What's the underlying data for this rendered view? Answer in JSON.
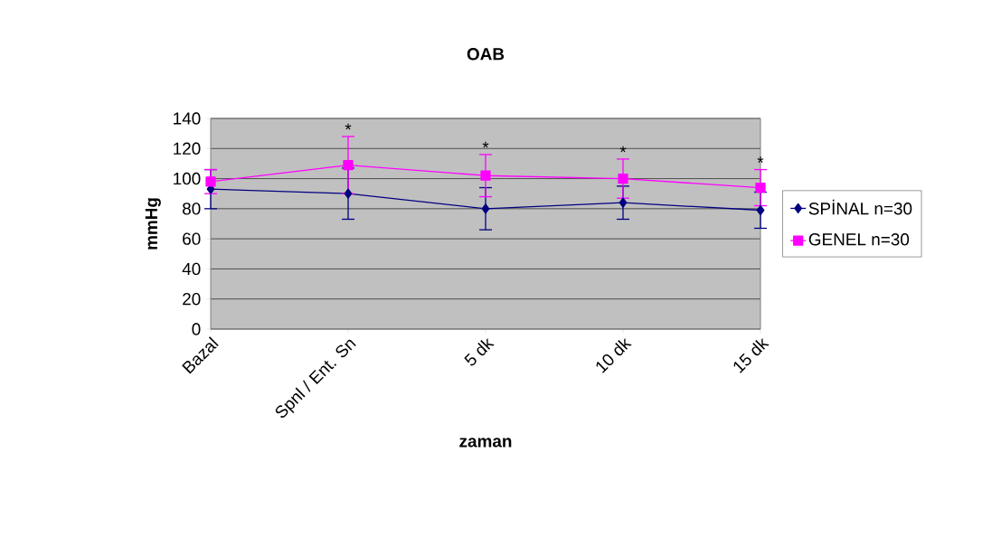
{
  "chart_data": {
    "type": "line",
    "title": "OAB",
    "xlabel": "zaman",
    "ylabel": "mmHg",
    "categories": [
      "Bazal",
      "Spnl / Ent. Sn",
      "5 dk",
      "10 dk",
      "15 dk"
    ],
    "series": [
      {
        "name": "SPİNAL n=30",
        "color": "#000080",
        "marker": "diamond",
        "values": [
          93,
          90,
          80,
          84,
          79
        ],
        "errors": [
          13,
          17,
          14,
          11,
          12
        ]
      },
      {
        "name": "GENEL n=30",
        "color": "#ff00ff",
        "marker": "square",
        "values": [
          98,
          109,
          102,
          100,
          94
        ],
        "errors": [
          8,
          19,
          14,
          13,
          12
        ]
      }
    ],
    "ylim": [
      0,
      140
    ],
    "yticks": [
      0,
      20,
      40,
      60,
      80,
      100,
      120,
      140
    ],
    "grid": "y",
    "legend": "right",
    "annotations": [
      "*",
      "*",
      "*",
      "*"
    ]
  }
}
